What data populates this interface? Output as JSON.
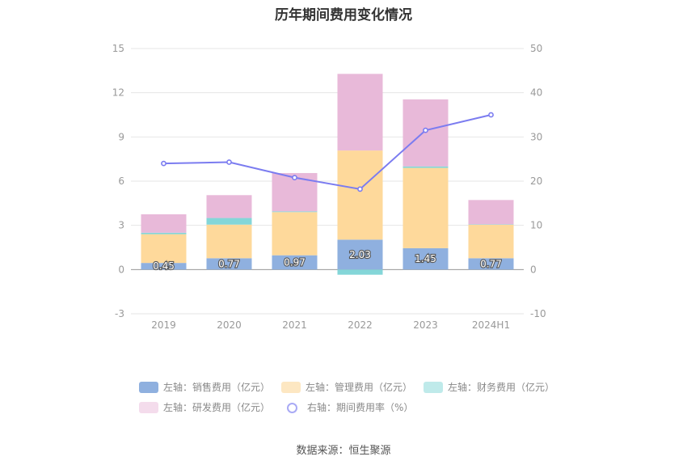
{
  "chart_data": {
    "type": "bar",
    "title": "历年期间费用变化情况",
    "categories": [
      "2019",
      "2020",
      "2021",
      "2022",
      "2023",
      "2024H1"
    ],
    "left_axis": {
      "ylim": [
        -3,
        15
      ],
      "ticks": [
        "-3",
        "0",
        "3",
        "6",
        "9",
        "12",
        "15"
      ]
    },
    "right_axis": {
      "ylim": [
        -10,
        50
      ],
      "ticks": [
        "-10",
        "0",
        "10",
        "20",
        "30",
        "40",
        "50"
      ]
    },
    "series": [
      {
        "name": "左轴：销售费用（亿元）",
        "color": "#8fb0df",
        "values": [
          0.45,
          0.77,
          0.97,
          2.03,
          1.45,
          0.77
        ],
        "labels": [
          "0.45",
          "0.77",
          "0.97",
          "2.03",
          "1.45",
          "0.77"
        ]
      },
      {
        "name": "左轴：管理费用（亿元）",
        "color": "#fed99b",
        "values": [
          1.95,
          2.28,
          2.93,
          6.05,
          5.45,
          2.28
        ]
      },
      {
        "name": "左轴：财务费用（亿元）",
        "color": "#84d6d8",
        "values": [
          0.1,
          0.45,
          0.05,
          -0.35,
          0.1,
          0.02
        ]
      },
      {
        "name": "左轴：研发费用（亿元）",
        "color": "#e8b9d9",
        "values": [
          1.25,
          1.55,
          2.6,
          5.2,
          4.55,
          1.65
        ]
      }
    ],
    "line": {
      "name": "右轴：期间费用率（%）",
      "color": "#7b7cf0",
      "values": [
        24.0,
        24.3,
        20.8,
        18.2,
        31.5,
        35.0
      ]
    }
  },
  "source": "数据来源：恒生聚源"
}
